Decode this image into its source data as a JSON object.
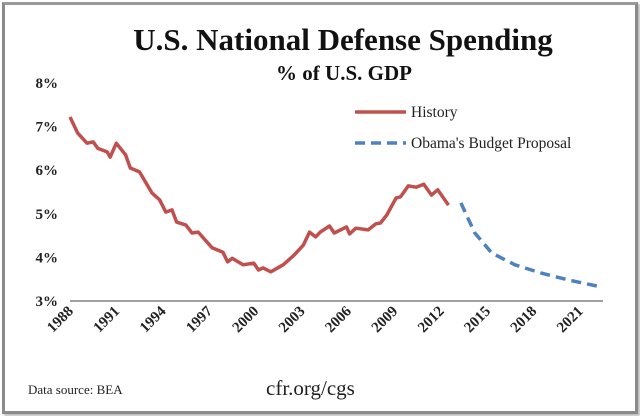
{
  "chart_data": {
    "type": "line",
    "title": "U.S. National Defense Spending",
    "subtitle": "% of U.S. GDP",
    "xlabel": "",
    "ylabel": "",
    "ylim": [
      3,
      8
    ],
    "xlim": [
      1988,
      2022.5
    ],
    "y_ticks": [
      "3%",
      "4%",
      "5%",
      "6%",
      "7%",
      "8%"
    ],
    "x_ticks": [
      "1988",
      "1991",
      "1994",
      "1997",
      "2000",
      "2003",
      "2006",
      "2009",
      "2012",
      "2015",
      "2018",
      "2021"
    ],
    "grid": false,
    "legend_position": "top-right",
    "series": [
      {
        "name": "History",
        "color": "#c0504d",
        "style": "solid",
        "x": [
          1988.0,
          1988.5,
          1989.1,
          1989.5,
          1989.8,
          1990.4,
          1990.6,
          1991.0,
          1991.6,
          1991.9,
          1992.5,
          1993.3,
          1993.8,
          1994.2,
          1994.6,
          1994.9,
          1995.5,
          1995.9,
          1996.3,
          1997.2,
          1997.9,
          1998.2,
          1998.5,
          1999.2,
          1999.9,
          2000.2,
          2000.5,
          2001.0,
          2001.8,
          2002.5,
          2003.1,
          2003.5,
          2003.9,
          2004.2,
          2004.8,
          2005.1,
          2005.9,
          2006.1,
          2006.5,
          2007.3,
          2007.8,
          2008.1,
          2008.5,
          2009.1,
          2009.4,
          2009.9,
          2010.4,
          2010.9,
          2011.4,
          2011.8,
          2012.5
        ],
        "y": [
          7.22,
          6.85,
          6.62,
          6.65,
          6.5,
          6.42,
          6.3,
          6.62,
          6.35,
          6.05,
          5.96,
          5.48,
          5.32,
          5.04,
          5.09,
          4.81,
          4.74,
          4.56,
          4.58,
          4.22,
          4.12,
          3.9,
          3.98,
          3.83,
          3.87,
          3.71,
          3.76,
          3.67,
          3.83,
          4.05,
          4.28,
          4.58,
          4.47,
          4.58,
          4.72,
          4.56,
          4.7,
          4.54,
          4.67,
          4.63,
          4.77,
          4.79,
          4.97,
          5.36,
          5.39,
          5.64,
          5.61,
          5.68,
          5.43,
          5.55,
          5.2
        ]
      },
      {
        "name": "Obama's Budget Proposal",
        "color": "#4f81bd",
        "style": "dashed",
        "x": [
          2013.3,
          2014.2,
          2015.3,
          2016.8,
          2018.5,
          2020.3,
          2022.4
        ],
        "y": [
          5.25,
          4.56,
          4.1,
          3.83,
          3.64,
          3.48,
          3.32
        ]
      }
    ]
  },
  "footer": {
    "source": "Data source: BEA",
    "credit": "cfr.org/cgs"
  }
}
